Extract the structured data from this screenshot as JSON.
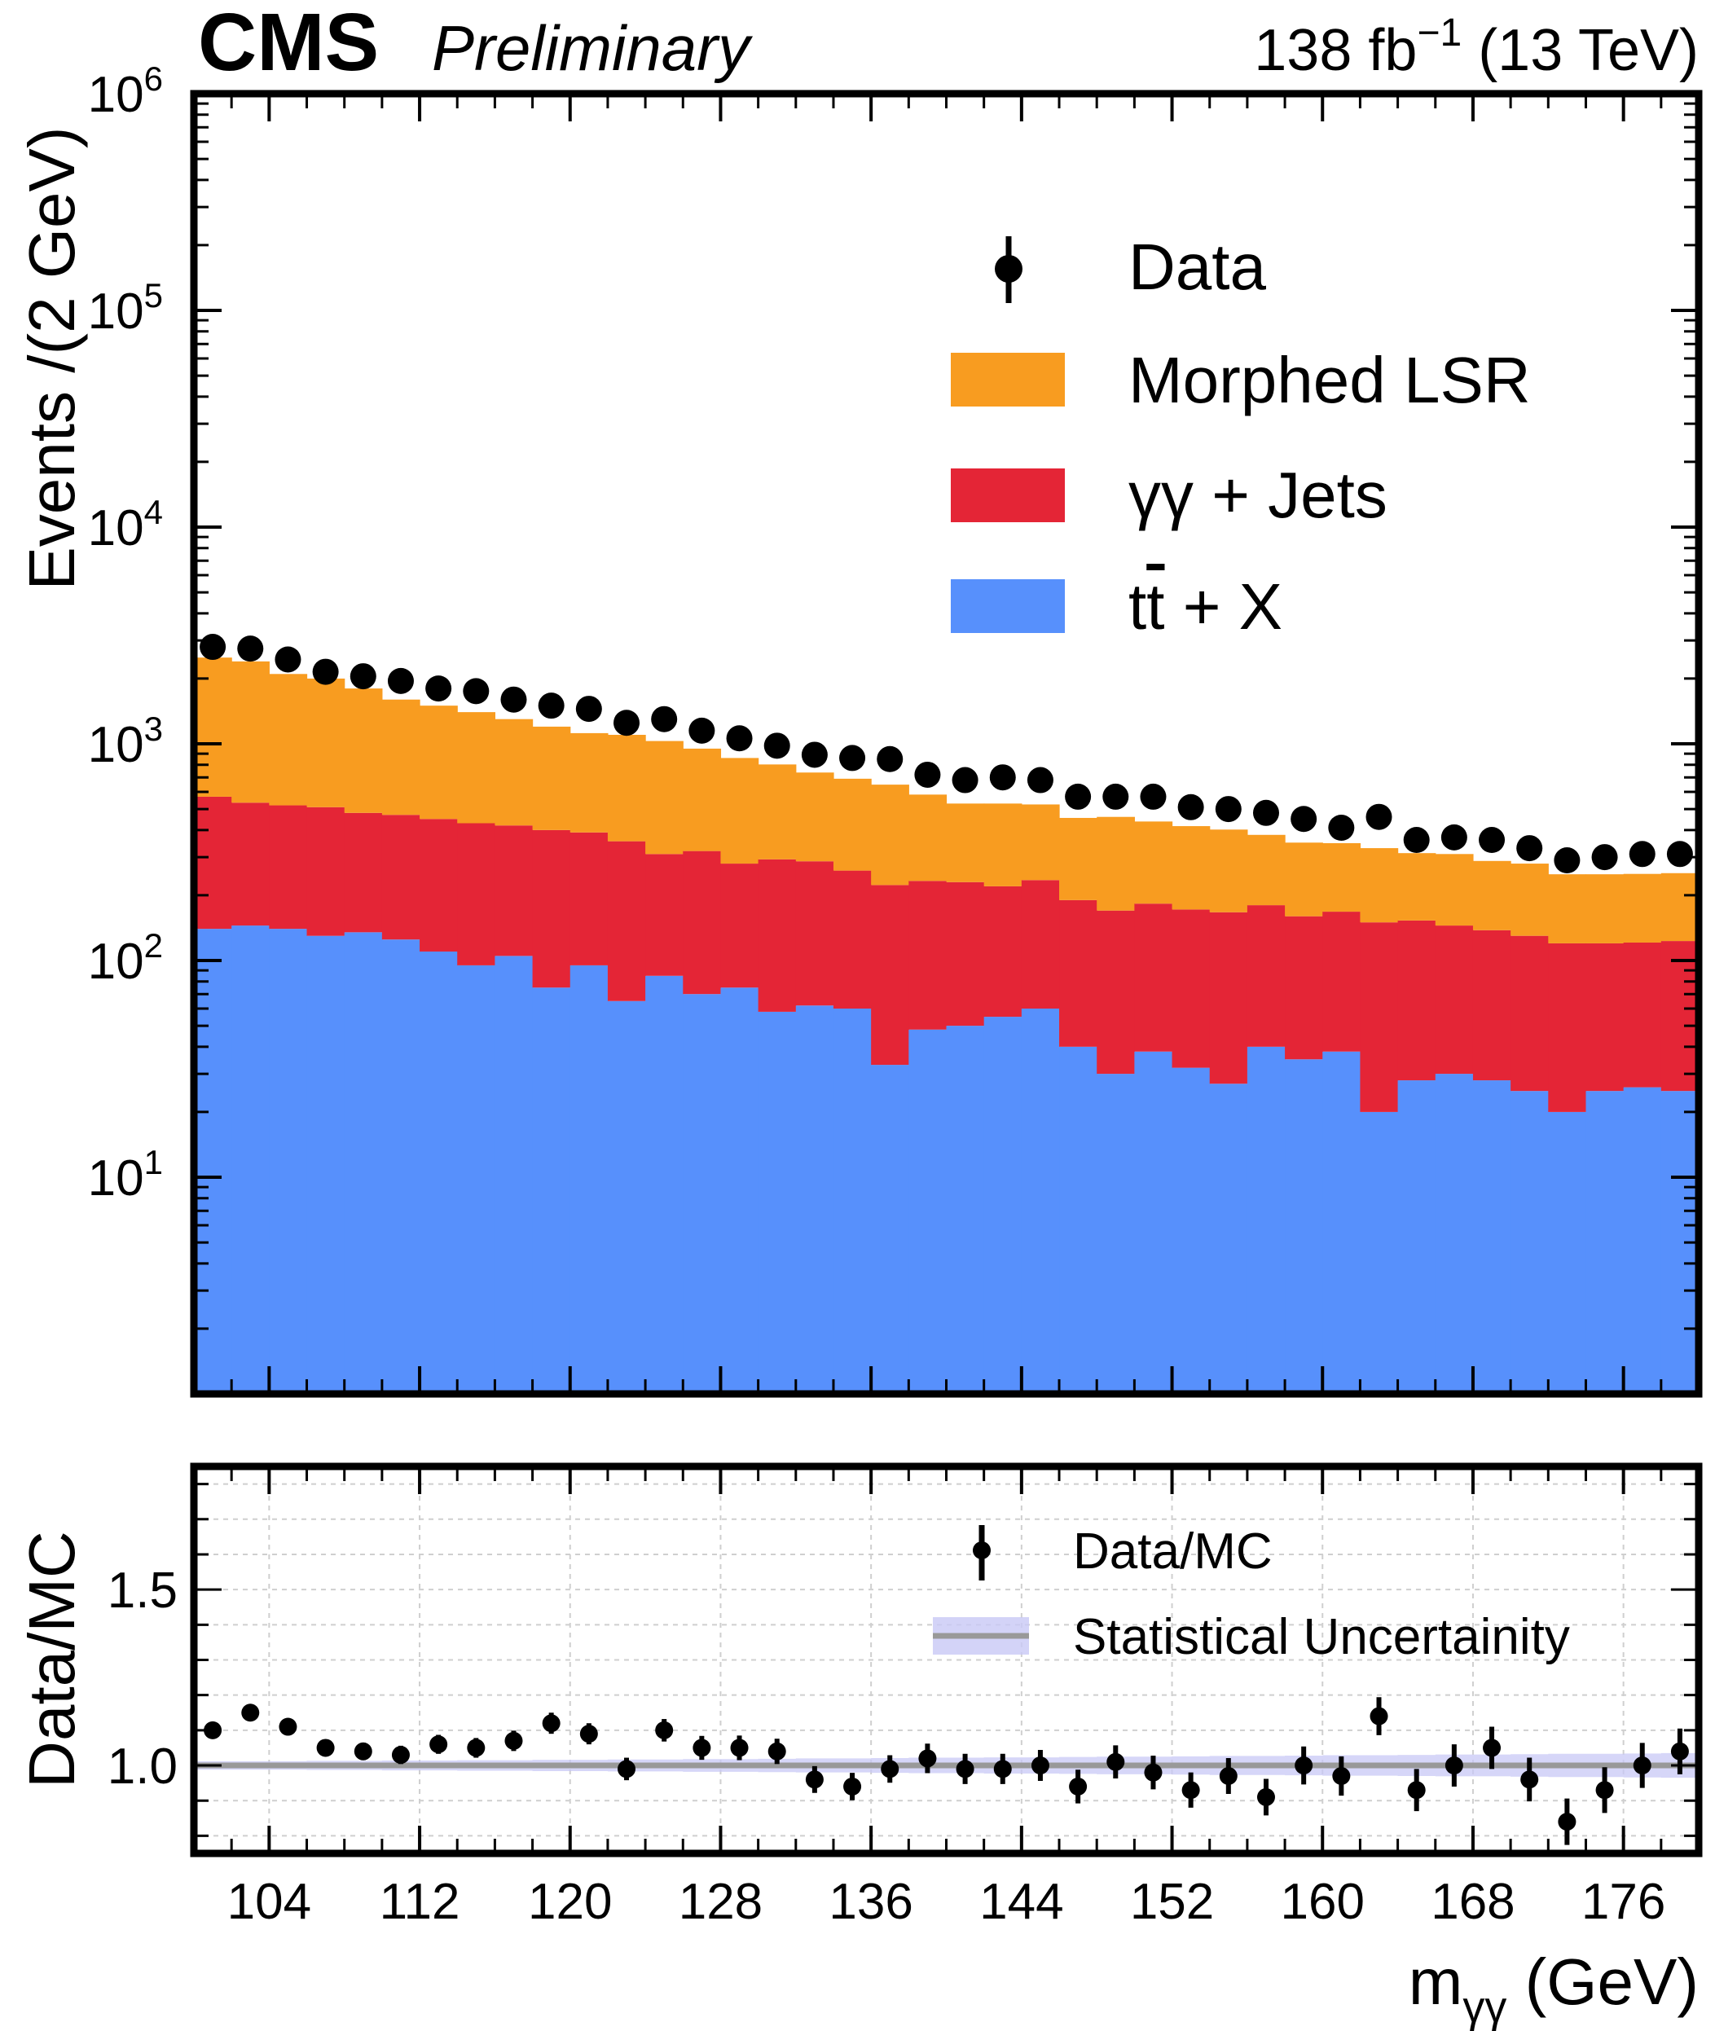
{
  "header": {
    "experiment": "CMS",
    "status": "Preliminary",
    "lumi": "138 fb",
    "lumi_exp": "−1",
    "energy": " (13 TeV)"
  },
  "chart_data": [
    {
      "type": "stacked-histogram",
      "panel": "main",
      "ylabel": "Events /(2 GeV)",
      "yscale": "log",
      "ylim": [
        1,
        1000000
      ],
      "y_tick_labels": [
        {
          "base": "10",
          "exp": "1",
          "value": 10
        },
        {
          "base": "10",
          "exp": "2",
          "value": 100
        },
        {
          "base": "10",
          "exp": "3",
          "value": 1000
        },
        {
          "base": "10",
          "exp": "4",
          "value": 10000
        },
        {
          "base": "10",
          "exp": "5",
          "value": 100000
        },
        {
          "base": "10",
          "exp": "6",
          "value": 1000000
        }
      ],
      "xlim": [
        100,
        180
      ],
      "bin_width": 2,
      "series": [
        {
          "name": "t̄t + X",
          "label_main": "t",
          "label_bar": "t",
          "label_rest": " + X",
          "color": "#5790fc",
          "values": [
            140,
            145,
            140,
            130,
            135,
            125,
            110,
            95,
            105,
            75,
            95,
            65,
            85,
            70,
            75,
            58,
            62,
            60,
            33,
            48,
            50,
            55,
            60,
            40,
            30,
            38,
            32,
            27,
            40,
            35,
            38,
            20,
            28,
            30,
            28,
            25,
            20,
            25,
            26,
            25
          ]
        },
        {
          "name": "γγ + Jets",
          "color": "#e42536",
          "values": [
            430,
            390,
            380,
            380,
            345,
            345,
            340,
            335,
            315,
            325,
            295,
            290,
            225,
            250,
            205,
            235,
            225,
            200,
            190,
            185,
            180,
            165,
            175,
            150,
            140,
            145,
            140,
            140,
            140,
            125,
            130,
            130,
            125,
            115,
            110,
            105,
            100,
            95,
            95,
            98
          ]
        },
        {
          "name": "Morphed LSR",
          "color": "#f89c20",
          "values": [
            1930,
            1865,
            1580,
            1490,
            1320,
            1130,
            1050,
            970,
            880,
            800,
            730,
            745,
            720,
            630,
            580,
            510,
            450,
            430,
            425,
            350,
            300,
            310,
            290,
            265,
            290,
            255,
            245,
            235,
            200,
            190,
            180,
            180,
            160,
            165,
            150,
            150,
            130,
            130,
            130,
            130
          ]
        }
      ],
      "data": {
        "name": "Data",
        "values": [
          2800,
          2750,
          2450,
          2150,
          2050,
          1950,
          1800,
          1750,
          1600,
          1500,
          1450,
          1250,
          1300,
          1150,
          1060,
          980,
          890,
          860,
          850,
          720,
          680,
          700,
          680,
          570,
          570,
          570,
          510,
          500,
          480,
          450,
          410,
          460,
          360,
          370,
          360,
          330,
          290,
          300,
          310,
          310
        ]
      },
      "legend": {
        "position": "top-right",
        "entries": [
          "Data",
          "Morphed LSR",
          "γγ + Jets",
          "t̄t + X"
        ]
      }
    },
    {
      "type": "ratio",
      "panel": "ratio",
      "ylabel": "Data/MC",
      "ylim": [
        0.75,
        1.85
      ],
      "y_ticks": [
        1.0,
        1.5
      ],
      "y_tick_labels": [
        "1.0",
        "1.5"
      ],
      "xlim": [
        100,
        180
      ],
      "x_ticks": [
        104,
        112,
        120,
        128,
        136,
        144,
        152,
        160,
        168,
        176
      ],
      "x_tick_labels": [
        "104",
        "112",
        "120",
        "128",
        "136",
        "144",
        "152",
        "160",
        "168",
        "176"
      ],
      "xlabel": "m",
      "xlabel_sub": "γγ",
      "xlabel_unit": " (GeV)",
      "grid": true,
      "reference_line": 1.0,
      "ratio_values": [
        1.1,
        1.15,
        1.11,
        1.05,
        1.04,
        1.03,
        1.06,
        1.05,
        1.07,
        1.12,
        1.09,
        0.99,
        1.1,
        1.05,
        1.05,
        1.04,
        0.96,
        0.94,
        0.99,
        1.02,
        0.99,
        0.99,
        1.0,
        0.94,
        1.01,
        0.98,
        0.93,
        0.97,
        0.91,
        1.0,
        0.97,
        1.14,
        0.93,
        1.0,
        1.05,
        0.96,
        0.84,
        0.93,
        1.0,
        1.04
      ],
      "ratio_errors": [
        0.02,
        0.022,
        0.022,
        0.024,
        0.025,
        0.026,
        0.027,
        0.028,
        0.029,
        0.03,
        0.03,
        0.032,
        0.032,
        0.034,
        0.035,
        0.036,
        0.038,
        0.039,
        0.039,
        0.042,
        0.043,
        0.043,
        0.044,
        0.048,
        0.047,
        0.048,
        0.05,
        0.051,
        0.052,
        0.054,
        0.056,
        0.054,
        0.06,
        0.06,
        0.06,
        0.062,
        0.066,
        0.065,
        0.064,
        0.065
      ],
      "stat_band_halfwidth": [
        0.012,
        0.012,
        0.012,
        0.013,
        0.013,
        0.014,
        0.014,
        0.015,
        0.015,
        0.016,
        0.016,
        0.017,
        0.017,
        0.018,
        0.018,
        0.019,
        0.02,
        0.02,
        0.021,
        0.022,
        0.022,
        0.023,
        0.023,
        0.024,
        0.025,
        0.025,
        0.026,
        0.027,
        0.027,
        0.028,
        0.029,
        0.029,
        0.03,
        0.031,
        0.031,
        0.032,
        0.033,
        0.033,
        0.034,
        0.035
      ],
      "legend": {
        "position": "top-right",
        "entries": [
          "Data/MC",
          "Statistical Uncertainity"
        ]
      }
    }
  ]
}
